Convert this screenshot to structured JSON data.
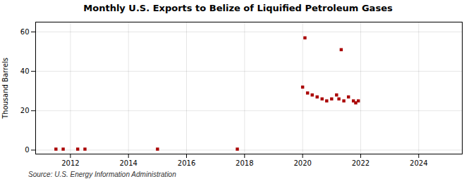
{
  "chart_data": {
    "type": "scatter",
    "title": "Monthly U.S. Exports to Belize of Liquified Petroleum Gases",
    "ylabel": "Thousand Barrels",
    "source": "Source: U.S. Energy Information Administration",
    "x": [
      2011.5,
      2011.75,
      2012.25,
      2012.5,
      2015.0,
      2017.75,
      2020.0,
      2020.17,
      2020.33,
      2020.5,
      2020.67,
      2020.83,
      2021.0,
      2021.17,
      2021.25,
      2021.42,
      2021.58,
      2021.75,
      2021.83,
      2021.92,
      2020.08,
      2021.33
    ],
    "values": [
      0.5,
      0.5,
      0.5,
      0.5,
      0.5,
      0.5,
      32,
      29,
      28,
      27,
      26,
      25,
      26,
      28,
      26,
      25,
      27,
      25,
      24,
      25,
      57,
      51
    ],
    "color": "#aa0000",
    "marker": "square",
    "xlim": [
      2010.8,
      2025.5
    ],
    "ylim": [
      -2,
      65
    ],
    "xticks": [
      2012,
      2014,
      2016,
      2018,
      2020,
      2022,
      2024
    ],
    "yticks": [
      0,
      20,
      40,
      60
    ],
    "grid": true
  }
}
